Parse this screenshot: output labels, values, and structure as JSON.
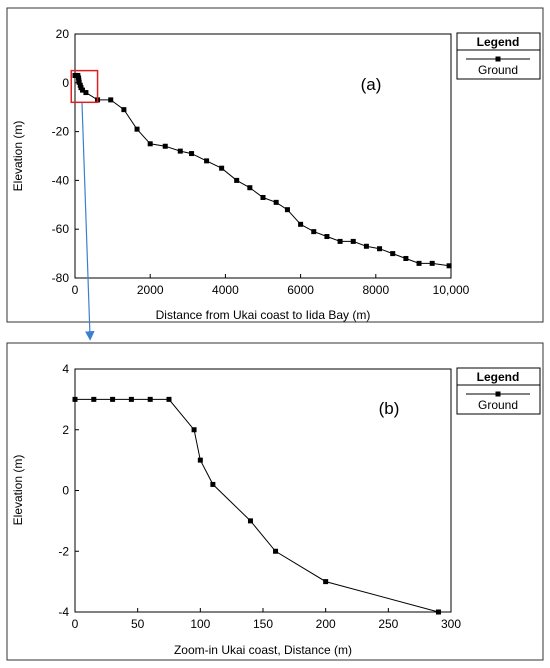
{
  "chart_data": [
    {
      "type": "line",
      "annotation": "(a)",
      "xlabel": "Distance from Ukai coast to Iida Bay (m)",
      "ylabel": "Elevation (m)",
      "xlim": [
        0,
        10000
      ],
      "ylim": [
        -80,
        20
      ],
      "x_ticks": [
        0,
        2000,
        4000,
        6000,
        8000,
        10000
      ],
      "x_tick_labels": [
        "0",
        "2000",
        "4000",
        "6000",
        "8000",
        "10,000"
      ],
      "y_ticks": [
        -80,
        -60,
        -40,
        -20,
        0,
        20
      ],
      "y_tick_labels": [
        "-80",
        "-60",
        "-40",
        "-20",
        "0",
        "20"
      ],
      "legend": {
        "title": "Legend",
        "position": "right",
        "entries": [
          "Ground"
        ]
      },
      "inset_highlight": {
        "x_range": [
          -100,
          600
        ],
        "y_range": [
          -8,
          5
        ]
      },
      "series": [
        {
          "name": "Ground",
          "x": [
            0,
            15,
            30,
            45,
            60,
            75,
            95,
            100,
            110,
            140,
            160,
            200,
            290,
            600,
            950,
            1300,
            1650,
            2000,
            2400,
            2800,
            3100,
            3500,
            3900,
            4300,
            4650,
            5000,
            5350,
            5650,
            6000,
            6350,
            6700,
            7050,
            7400,
            7750,
            8100,
            8450,
            8800,
            9150,
            9500,
            9950
          ],
          "y": [
            3,
            3,
            3,
            3,
            3,
            3,
            2,
            1,
            0.2,
            -1,
            -2,
            -3,
            -4,
            -7,
            -7,
            -11,
            -19,
            -25,
            -26,
            -28,
            -29,
            -32,
            -35,
            -40,
            -43,
            -47,
            -49,
            -52,
            -58,
            -61,
            -63,
            -65,
            -65,
            -67,
            -68,
            -70,
            -72,
            -74,
            -74,
            -75
          ]
        }
      ]
    },
    {
      "type": "line",
      "annotation": "(b)",
      "xlabel": "Zoom-in Ukai coast, Distance (m)",
      "ylabel": "Elevation (m)",
      "xlim": [
        0,
        300
      ],
      "ylim": [
        -4,
        4
      ],
      "x_ticks": [
        0,
        50,
        100,
        150,
        200,
        250,
        300
      ],
      "x_tick_labels": [
        "0",
        "50",
        "100",
        "150",
        "200",
        "250",
        "300"
      ],
      "y_ticks": [
        -4,
        -2,
        0,
        2,
        4
      ],
      "y_tick_labels": [
        "-4",
        "-2",
        "0",
        "2",
        "4"
      ],
      "legend": {
        "title": "Legend",
        "position": "right",
        "entries": [
          "Ground"
        ]
      },
      "series": [
        {
          "name": "Ground",
          "x": [
            0,
            15,
            30,
            45,
            60,
            75,
            95,
            100,
            110,
            140,
            160,
            200,
            290
          ],
          "y": [
            3,
            3,
            3,
            3,
            3,
            3,
            2,
            1,
            0.2,
            -1,
            -2,
            -3,
            -4
          ]
        }
      ]
    }
  ],
  "colors": {
    "line": "#000000",
    "highlight_box": "#e02020",
    "arrow": "#3b7fd0",
    "panel_border": "#333333"
  }
}
